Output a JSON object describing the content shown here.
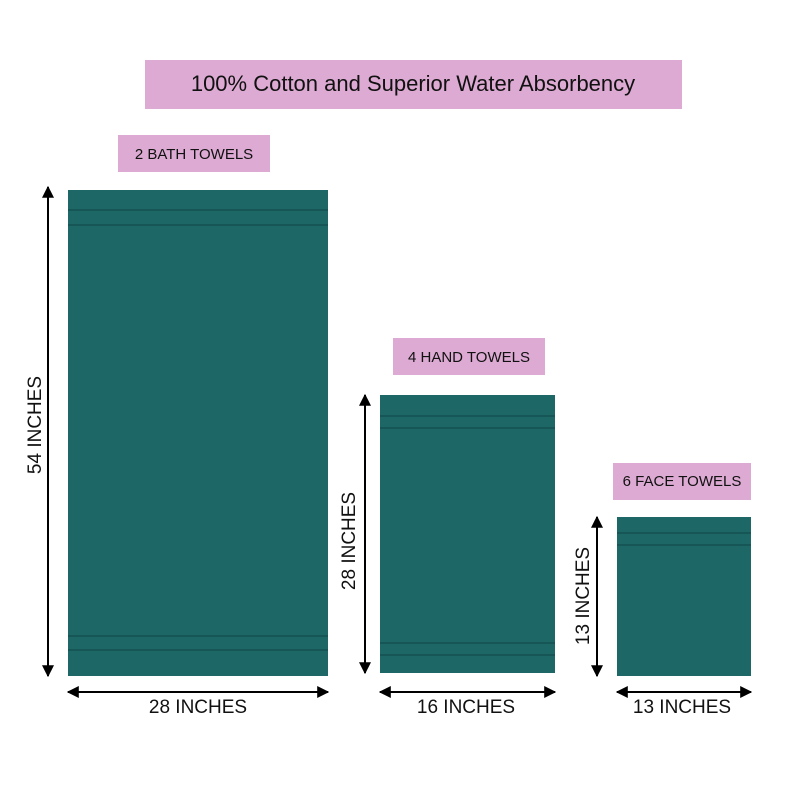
{
  "title": "100% Cotton and Superior Water Absorbency",
  "towels": [
    {
      "label": "2 BATH TOWELS",
      "height": "54 INCHES",
      "width": "28 INCHES"
    },
    {
      "label": "4 HAND TOWELS",
      "height": "28 INCHES",
      "width": "16 INCHES"
    },
    {
      "label": "6 FACE TOWELS",
      "height": "13 INCHES",
      "width": "13 INCHES"
    }
  ]
}
